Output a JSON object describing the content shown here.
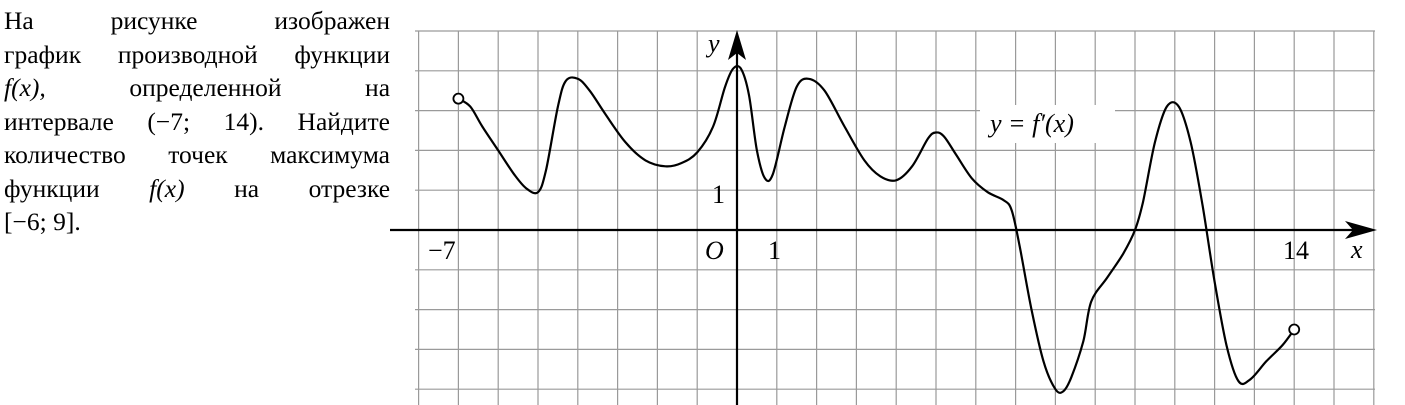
{
  "problem": {
    "lines": [
      [
        "На",
        "рисунке",
        "изображен"
      ],
      [
        "график производной функции"
      ],
      [
        "f(x),",
        "определенной",
        "на"
      ],
      [
        "интервале",
        "(−7;",
        "14).",
        "Найдите"
      ],
      [
        "количество",
        "точек",
        "максимума"
      ],
      [
        "функции",
        "f(x)",
        "на",
        "отрезке"
      ],
      [
        "[−6; 9]."
      ]
    ],
    "italic_tokens": [
      "f(x),",
      "f(x)"
    ]
  },
  "graph": {
    "y_axis_label": "y",
    "x_axis_label": "x",
    "origin_label": "O",
    "tick_labels": {
      "x_minus7": "−7",
      "x_1": "1",
      "x_14": "14",
      "y_1": "1"
    },
    "function_label": "y = f′(x)",
    "open_endpoints": [
      [
        -7,
        3.3
      ],
      [
        14,
        -2.5
      ]
    ],
    "curve_points": [
      [
        -7,
        3.3
      ],
      [
        -6.7,
        3.1
      ],
      [
        -6.4,
        2.6
      ],
      [
        -6,
        2
      ],
      [
        -5.6,
        1.4
      ],
      [
        -5.3,
        1.05
      ],
      [
        -5,
        0.95
      ],
      [
        -4.8,
        1.5
      ],
      [
        -4.5,
        3.1
      ],
      [
        -4.3,
        3.75
      ],
      [
        -4,
        3.8
      ],
      [
        -3.7,
        3.5
      ],
      [
        -3.3,
        2.9
      ],
      [
        -2.8,
        2.2
      ],
      [
        -2.3,
        1.75
      ],
      [
        -1.8,
        1.6
      ],
      [
        -1.4,
        1.68
      ],
      [
        -1,
        1.95
      ],
      [
        -0.6,
        2.6
      ],
      [
        -0.3,
        3.6
      ],
      [
        -0.1,
        4.05
      ],
      [
        0.1,
        4.05
      ],
      [
        0.3,
        3.4
      ],
      [
        0.5,
        2
      ],
      [
        0.7,
        1.3
      ],
      [
        0.9,
        1.4
      ],
      [
        1.2,
        2.6
      ],
      [
        1.5,
        3.6
      ],
      [
        1.8,
        3.8
      ],
      [
        2.2,
        3.5
      ],
      [
        2.7,
        2.6
      ],
      [
        3.2,
        1.75
      ],
      [
        3.6,
        1.35
      ],
      [
        4,
        1.25
      ],
      [
        4.4,
        1.6
      ],
      [
        4.8,
        2.3
      ],
      [
        5,
        2.45
      ],
      [
        5.2,
        2.35
      ],
      [
        5.5,
        1.9
      ],
      [
        5.9,
        1.3
      ],
      [
        6.3,
        0.95
      ],
      [
        6.7,
        0.75
      ],
      [
        6.9,
        0.5
      ],
      [
        7.1,
        -0.4
      ],
      [
        7.4,
        -2
      ],
      [
        7.7,
        -3.3
      ],
      [
        8,
        -4
      ],
      [
        8.2,
        -4.05
      ],
      [
        8.4,
        -3.7
      ],
      [
        8.7,
        -2.8
      ],
      [
        8.9,
        -1.8
      ],
      [
        9.3,
        -1.2
      ],
      [
        9.7,
        -0.6
      ],
      [
        10,
        0
      ],
      [
        10.2,
        0.7
      ],
      [
        10.5,
        2.2
      ],
      [
        10.8,
        3.1
      ],
      [
        11.1,
        3.1
      ],
      [
        11.4,
        2.2
      ],
      [
        11.7,
        0.6
      ],
      [
        12,
        -1.3
      ],
      [
        12.3,
        -2.9
      ],
      [
        12.6,
        -3.8
      ],
      [
        12.9,
        -3.75
      ],
      [
        13.3,
        -3.3
      ],
      [
        13.7,
        -2.9
      ],
      [
        14,
        -2.5
      ]
    ]
  }
}
